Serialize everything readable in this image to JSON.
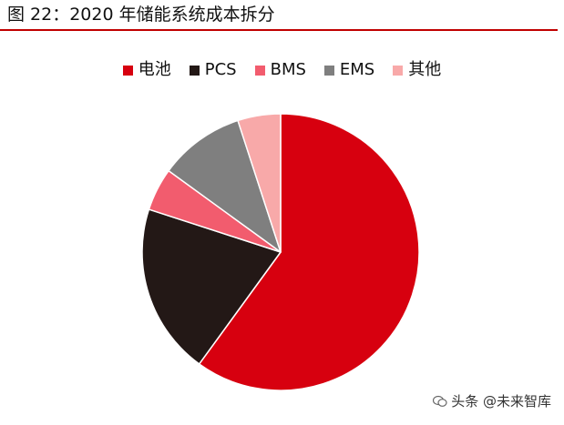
{
  "header": {
    "figure_title": "图 22：2020 年储能系统成本拆分"
  },
  "chart_data": {
    "type": "pie",
    "title": "图 22：2020 年储能系统成本拆分",
    "legend_position": "top",
    "slices": [
      {
        "label": "电池",
        "value": 60,
        "color": "#d7000f"
      },
      {
        "label": "PCS",
        "value": 20,
        "color": "#231816"
      },
      {
        "label": "BMS",
        "value": 5,
        "color": "#f25c6e"
      },
      {
        "label": "EMS",
        "value": 10,
        "color": "#7f7f7f"
      },
      {
        "label": "其他",
        "value": 5,
        "color": "#f8a9a9"
      }
    ]
  },
  "watermark": {
    "text": "头条 @未来智库"
  }
}
